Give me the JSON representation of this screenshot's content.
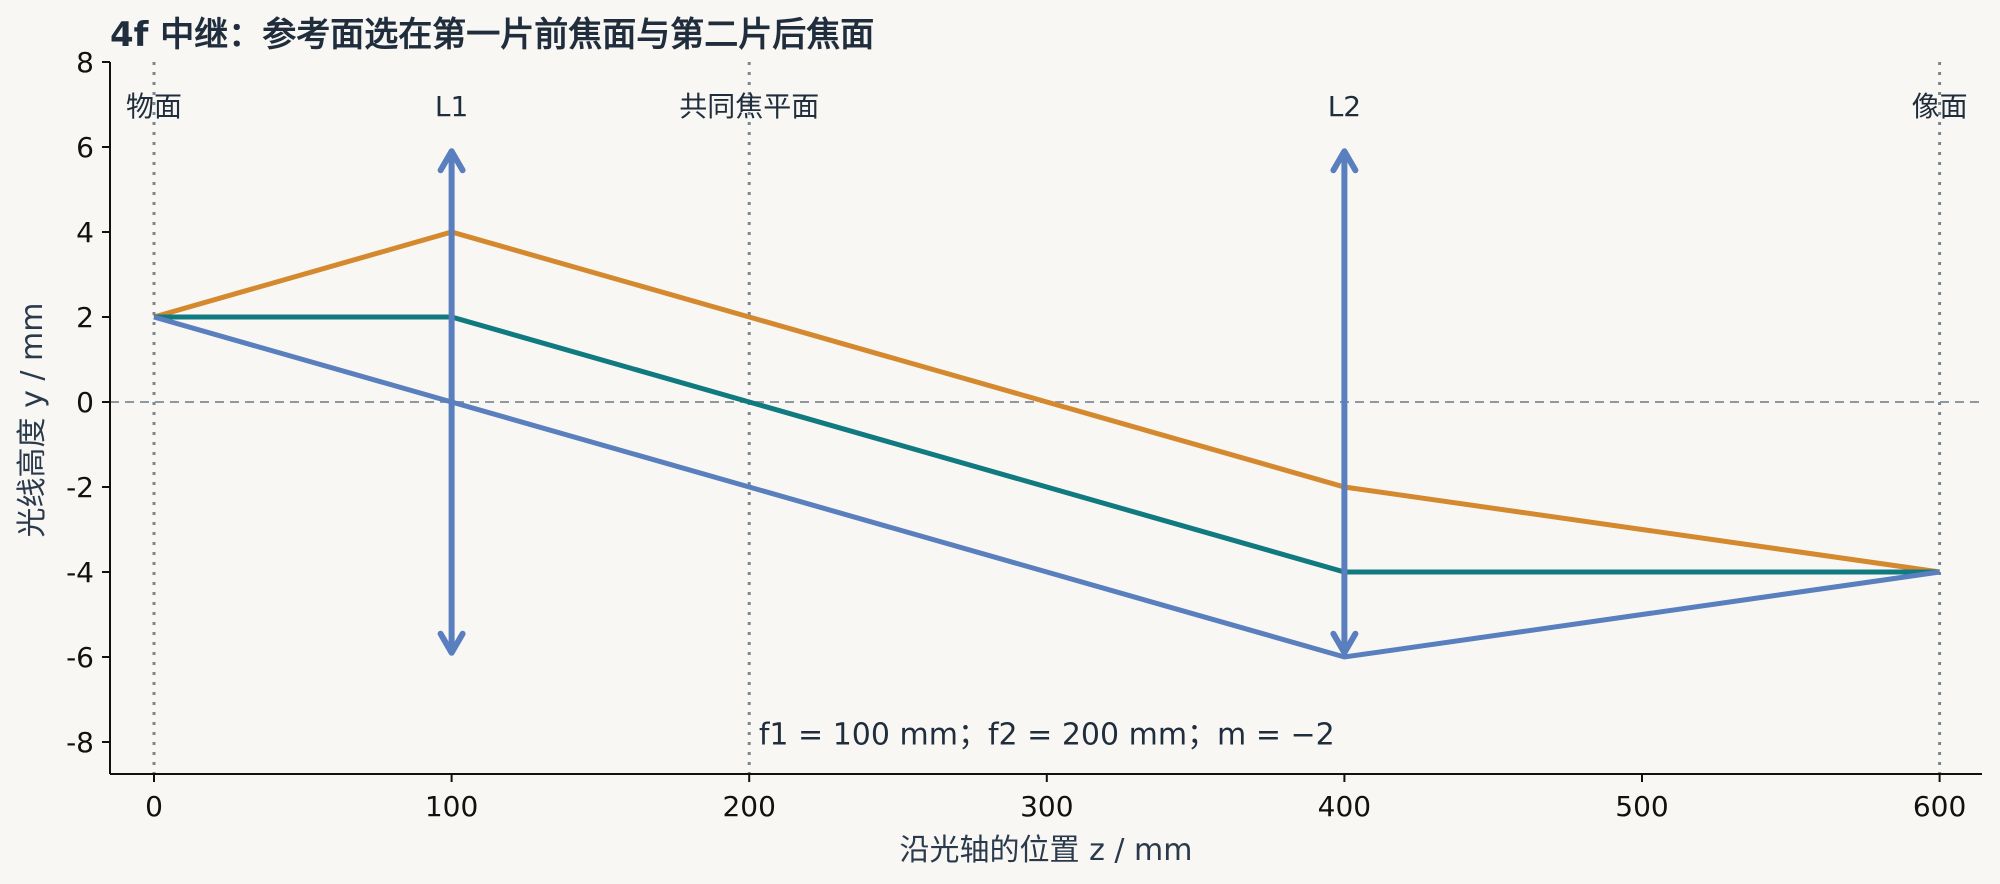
{
  "chart_data": {
    "type": "line",
    "title": "4f 中继：参考面选在第一片前焦面与第二片后焦面",
    "xlabel": "沿光轴的位置 z / mm",
    "ylabel": "光线高度 y / mm",
    "xlim": [
      -15,
      615
    ],
    "ylim": [
      -8.75,
      8
    ],
    "xticks": [
      0,
      100,
      200,
      300,
      400,
      500,
      600
    ],
    "xtick_labels": [
      "0",
      "100",
      "200",
      "300",
      "400",
      "500",
      "600"
    ],
    "yticks": [
      8,
      6,
      4,
      2,
      0,
      -2,
      -4,
      -6,
      -8
    ],
    "ytick_labels": [
      "8",
      "6",
      "4",
      "2",
      "0",
      "-2",
      "-4",
      "-6",
      "-8"
    ],
    "grid": false,
    "planes": [
      {
        "z": 0,
        "label": "物面"
      },
      {
        "z": 200,
        "label": "共同焦平面"
      },
      {
        "z": 600,
        "label": "像面"
      }
    ],
    "lenses": [
      {
        "z": 100,
        "label": "L1",
        "y_min": -5.9,
        "y_max": 5.9
      },
      {
        "z": 400,
        "label": "L2",
        "y_min": -5.9,
        "y_max": 5.9
      }
    ],
    "series": [
      {
        "color": "#d4892e",
        "x": [
          0,
          100,
          400,
          600
        ],
        "y": [
          2,
          4,
          -2,
          -4
        ]
      },
      {
        "color": "#117a80",
        "x": [
          0,
          100,
          400,
          600
        ],
        "y": [
          2,
          2,
          -4,
          -4
        ]
      },
      {
        "color": "#5a7fbe",
        "x": [
          0,
          100,
          400,
          600
        ],
        "y": [
          2,
          0,
          -6,
          -4
        ]
      }
    ],
    "annotation": {
      "text": "f1 = 100 mm；f2 = 200 mm；m = −2",
      "x": 300,
      "y": -7.8
    },
    "colors": {
      "background": "#f9f7f3",
      "axis": "#111111",
      "plane_line": "#7a8791",
      "zero_line": "#8f989f",
      "lens": "#5a7fbe"
    }
  }
}
